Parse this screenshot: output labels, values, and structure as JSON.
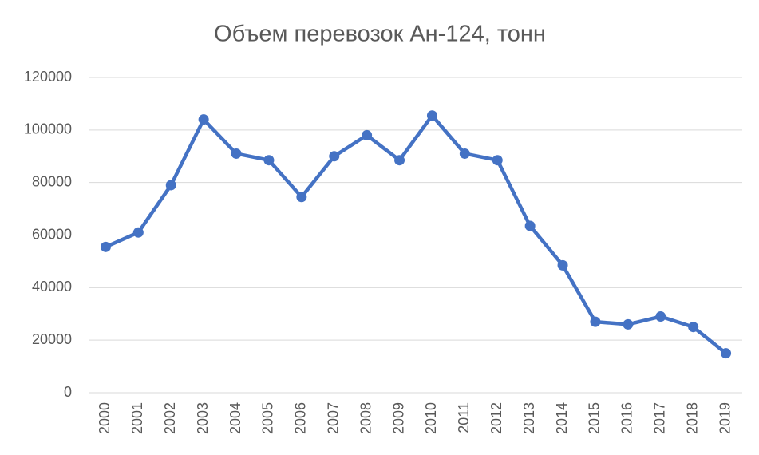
{
  "chart_data": {
    "type": "line",
    "title": "Объем перевозок Ан-124, тонн",
    "categories": [
      "2000",
      "2001",
      "2002",
      "2003",
      "2004",
      "2005",
      "2006",
      "2007",
      "2008",
      "2009",
      "2010",
      "2011",
      "2012",
      "2013",
      "2014",
      "2015",
      "2016",
      "2017",
      "2018",
      "2019"
    ],
    "series": [
      {
        "color": "#4472c4",
        "values": [
          55500,
          61000,
          79000,
          104000,
          91000,
          88500,
          74500,
          90000,
          98000,
          88500,
          105500,
          91000,
          88500,
          63500,
          48500,
          27000,
          26000,
          29000,
          25000,
          15000
        ]
      }
    ],
    "ylim": [
      0,
      120000
    ],
    "yticks": [
      0,
      20000,
      40000,
      60000,
      80000,
      100000,
      120000
    ],
    "grid": true
  }
}
